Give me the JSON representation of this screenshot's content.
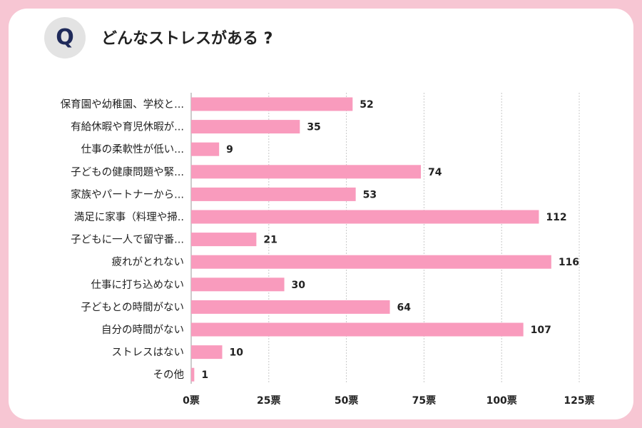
{
  "question": {
    "badge": "Q",
    "title": "どんなストレスがある ?"
  },
  "chart_data": {
    "type": "bar",
    "orientation": "horizontal",
    "title": "どんなストレスがある ?",
    "categories": [
      "保育園や幼稚園、学校と...",
      "有給休暇や育児休暇が...",
      "仕事の柔軟性が低い...",
      "子どもの健康問題や緊...",
      "家族やパートナーから...",
      "満足に家事（料理や掃..",
      "子どもに一人で留守番...",
      "疲れがとれない",
      "仕事に打ち込めない",
      "子どもとの時間がない",
      "自分の時間がない",
      "ストレスはない",
      "その他"
    ],
    "values": [
      52,
      35,
      9,
      74,
      53,
      112,
      21,
      116,
      30,
      64,
      107,
      10,
      1
    ],
    "value_labels": [
      "52",
      "35",
      "9",
      "74",
      "53",
      "112",
      "21",
      "116",
      "30",
      "64",
      "107",
      "10",
      "1"
    ],
    "xlim": [
      0,
      125
    ],
    "ticks": [
      0,
      25,
      50,
      75,
      100,
      125
    ],
    "tick_labels": [
      "0票",
      "25票",
      "50票",
      "75票",
      "100票",
      "125票"
    ],
    "bar_color": "#f99bbd",
    "grid": true
  }
}
